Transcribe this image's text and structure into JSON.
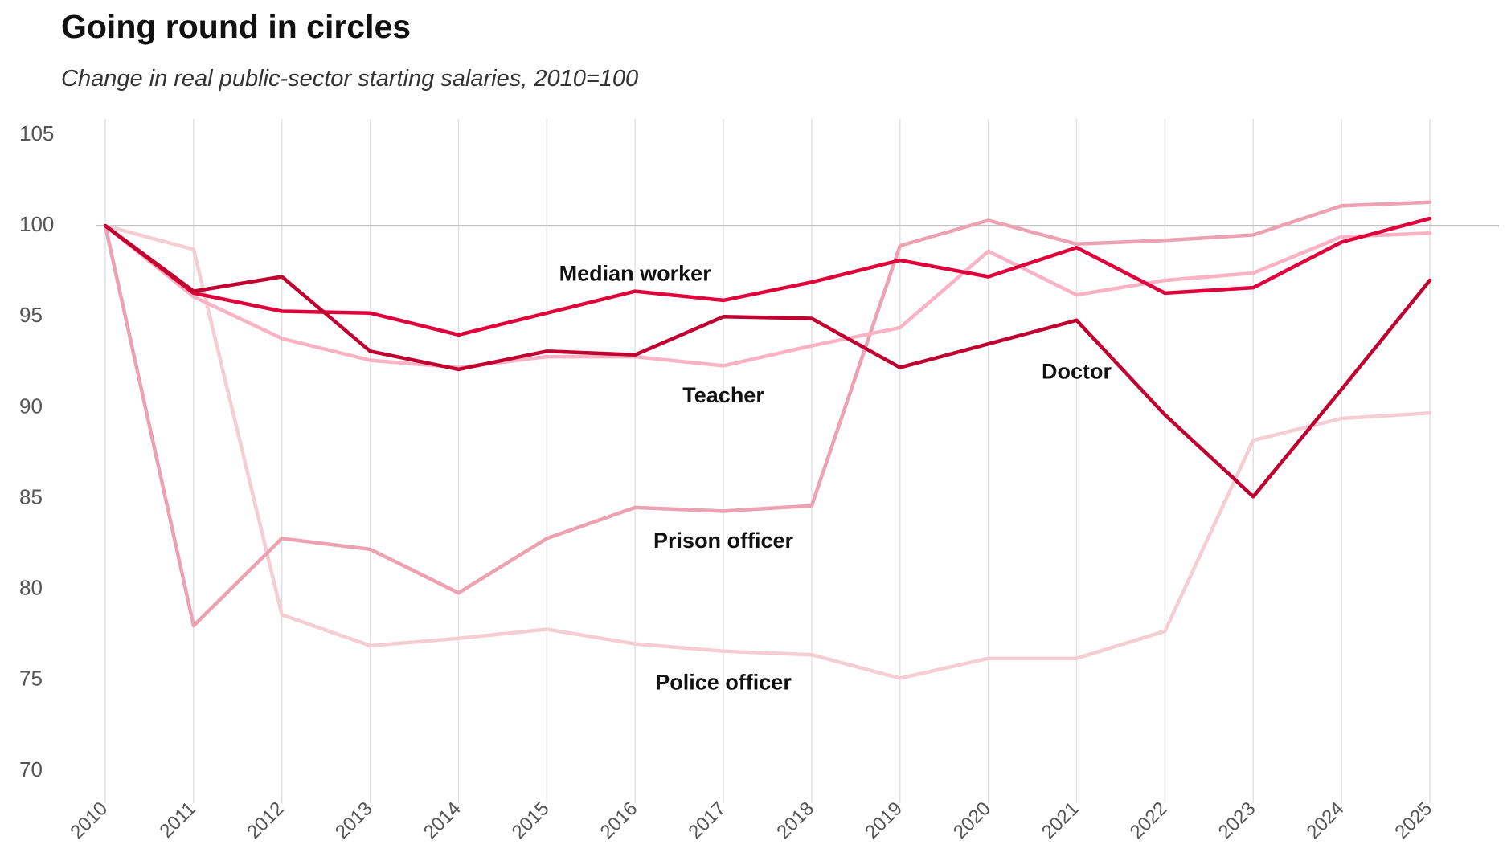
{
  "chart_data": {
    "type": "line",
    "title": "Going round in circles",
    "subtitle": "Change in real public-sector starting salaries, 2010=100",
    "xlabel": "",
    "ylabel": "",
    "x": [
      "2010",
      "2011",
      "2012",
      "2013",
      "2014",
      "2015",
      "2016",
      "2017",
      "2018",
      "2019",
      "2020",
      "2021",
      "2022",
      "2023",
      "2024",
      "2025"
    ],
    "ylim": [
      70,
      105
    ],
    "yticks": [
      70,
      75,
      80,
      85,
      90,
      95,
      100,
      105
    ],
    "reference_line": 100,
    "grid": "vertical",
    "legend": "direct labels",
    "series": [
      {
        "name": "Police officer",
        "color": "#f4cdd5",
        "values": [
          100,
          98.7,
          78.6,
          76.9,
          77.3,
          77.8,
          77.0,
          76.6,
          76.4,
          75.1,
          76.2,
          76.2,
          77.7,
          88.2,
          89.4,
          89.7
        ]
      },
      {
        "name": "Prison officer",
        "color": "#eca2b3",
        "values": [
          100,
          78.0,
          82.8,
          82.2,
          79.8,
          82.8,
          84.5,
          84.3,
          84.6,
          98.9,
          100.3,
          99.0,
          99.2,
          99.5,
          101.1,
          101.3
        ]
      },
      {
        "name": "Teacher",
        "color": "#fab3c5",
        "values": [
          100,
          96.1,
          93.8,
          92.6,
          92.2,
          92.8,
          92.8,
          92.3,
          93.4,
          94.4,
          98.6,
          96.2,
          97.0,
          97.4,
          99.4,
          99.6
        ]
      },
      {
        "name": "Median worker",
        "color": "#e0003a",
        "values": [
          100,
          96.3,
          95.3,
          95.2,
          94.0,
          95.2,
          96.4,
          95.9,
          96.9,
          98.1,
          97.2,
          98.8,
          96.3,
          96.6,
          99.1,
          100.4
        ]
      },
      {
        "name": "Doctor",
        "color": "#c0002f",
        "values": [
          100,
          96.4,
          97.2,
          93.1,
          92.1,
          93.1,
          92.9,
          95.0,
          94.9,
          92.2,
          93.5,
          94.8,
          89.6,
          85.1,
          91.0,
          97.0
        ]
      }
    ],
    "labels": [
      {
        "series": "Median worker",
        "text": "Median worker",
        "at_x": "2016",
        "at_y": 97.3
      },
      {
        "series": "Teacher",
        "text": "Teacher",
        "at_x": "2017",
        "at_y": 90.6
      },
      {
        "series": "Doctor",
        "text": "Doctor",
        "at_x": "2021",
        "at_y": 91.9
      },
      {
        "series": "Prison officer",
        "text": "Prison officer",
        "at_x": "2017",
        "at_y": 82.6
      },
      {
        "series": "Police officer",
        "text": "Police officer",
        "at_x": "2017",
        "at_y": 74.8
      }
    ]
  }
}
